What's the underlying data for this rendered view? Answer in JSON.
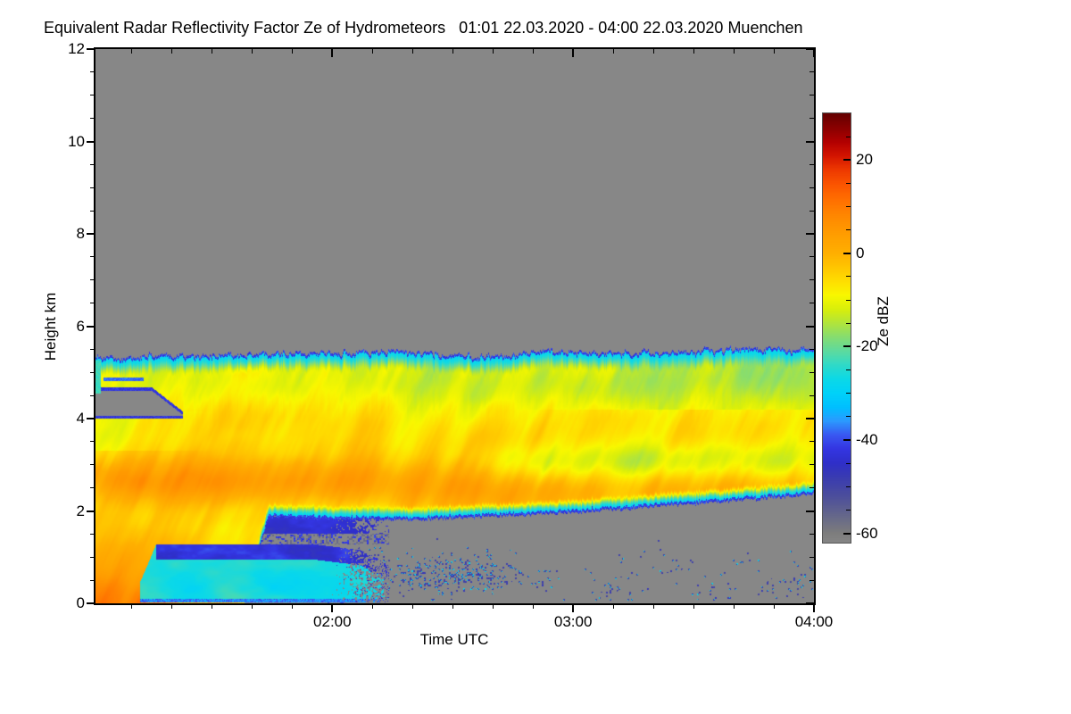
{
  "page": {
    "background": "#ffffff"
  },
  "chart": {
    "title": "Equivalent Radar Reflectivity Factor Ze of Hydrometeors   01:01 22.03.2020 - 04:00 22.03.2020 Muenchen",
    "xlabel": "Time UTC",
    "ylabel": "Height km",
    "colorbar_label": "Ze dBZ"
  },
  "chart_data": {
    "type": "heatmap",
    "title": "Equivalent Radar Reflectivity Factor Ze of Hydrometeors",
    "period": "01:01 22.03.2020 - 04:00 22.03.2020",
    "station": "Muenchen",
    "xlabel": "Time UTC",
    "ylabel": "Height km",
    "x_axis": {
      "start": "01:01",
      "end": "04:00",
      "major_ticks": [
        "02:00",
        "03:00",
        "04:00"
      ],
      "major_tick_minutes": [
        59,
        119,
        179
      ],
      "minor_tick_step_min": 10,
      "range_minutes": 179
    },
    "y_axis": {
      "major_ticks": [
        0,
        2,
        4,
        6,
        8,
        10,
        12
      ],
      "minor_step_km": 0.5,
      "range_km": [
        0,
        12
      ]
    },
    "colorbar": {
      "label": "Ze dBZ",
      "range_dbz": [
        -62,
        30
      ],
      "major_ticks": [
        20,
        0,
        -20,
        -40,
        -60
      ],
      "minor_step": 5,
      "stops": [
        [
          30,
          "#650000"
        ],
        [
          27,
          "#8a0000"
        ],
        [
          24,
          "#b20000"
        ],
        [
          21,
          "#d41500"
        ],
        [
          18,
          "#ee3900"
        ],
        [
          15,
          "#fb5400"
        ],
        [
          12,
          "#ff6c00"
        ],
        [
          9,
          "#ff8200"
        ],
        [
          6,
          "#ff9400"
        ],
        [
          3,
          "#ffa300"
        ],
        [
          0,
          "#ffb000"
        ],
        [
          -3,
          "#ffc600"
        ],
        [
          -6,
          "#ffdf00"
        ],
        [
          -9,
          "#f9f800"
        ],
        [
          -12,
          "#d9ef0c"
        ],
        [
          -15,
          "#b1e53c"
        ],
        [
          -18,
          "#86dd72"
        ],
        [
          -21,
          "#5ddaa0"
        ],
        [
          -24,
          "#30dac9"
        ],
        [
          -27,
          "#0cd9e8"
        ],
        [
          -30,
          "#00d2fa"
        ],
        [
          -33,
          "#00c0ff"
        ],
        [
          -36,
          "#2c9aff"
        ],
        [
          -39,
          "#3a57f2"
        ],
        [
          -42,
          "#3436e2"
        ],
        [
          -45,
          "#2f2fc9"
        ],
        [
          -48,
          "#3a3cb2"
        ],
        [
          -52,
          "#4c4e9d"
        ],
        [
          -56,
          "#64668c"
        ],
        [
          -60,
          "#7d7d7d"
        ],
        [
          -62,
          "#868686"
        ]
      ]
    },
    "background_no_signal_color": "#878787",
    "field_model": {
      "cloud_top_km": [
        [
          0,
          5.33
        ],
        [
          25,
          5.36
        ],
        [
          50,
          5.42
        ],
        [
          75,
          5.45
        ],
        [
          100,
          5.32
        ],
        [
          110,
          5.45
        ],
        [
          130,
          5.42
        ],
        [
          155,
          5.48
        ],
        [
          179,
          5.52
        ]
      ],
      "cloud_base_km": [
        [
          0,
          0
        ],
        [
          37,
          0
        ],
        [
          43,
          1.87
        ],
        [
          60,
          1.82
        ],
        [
          80,
          1.8
        ],
        [
          100,
          1.88
        ],
        [
          120,
          1.97
        ],
        [
          140,
          2.1
        ],
        [
          160,
          2.22
        ],
        [
          179,
          2.36
        ]
      ],
      "orange_band": {
        "center": [
          [
            0,
            2.7
          ],
          [
            40,
            2.65
          ],
          [
            70,
            2.55
          ],
          [
            100,
            2.4
          ],
          [
            130,
            2.45
          ],
          [
            179,
            2.58
          ]
        ],
        "amp": [
          [
            0,
            13
          ],
          [
            40,
            13
          ],
          [
            70,
            11
          ],
          [
            100,
            9
          ],
          [
            130,
            7
          ],
          [
            179,
            7.5
          ]
        ],
        "halfwidth": 0.55
      },
      "low_orange": {
        "amp": [
          [
            0,
            16
          ],
          [
            10,
            16
          ],
          [
            22,
            11
          ],
          [
            34,
            7
          ],
          [
            44,
            0
          ]
        ],
        "top_km": 2.5
      },
      "green_band": {
        "center_km": 3.05,
        "halfwidth": 0.42,
        "amp": [
          [
            0,
            0
          ],
          [
            85,
            0
          ],
          [
            110,
            6
          ],
          [
            130,
            8
          ],
          [
            155,
            8
          ],
          [
            179,
            7
          ]
        ]
      },
      "notch": {
        "t_range": [
          0,
          22
        ],
        "h_lo": 4.06,
        "h_hi": 4.6,
        "close_start": 14
      },
      "wedge": {
        "t_range": [
          11,
          73
        ],
        "top_km": [
          [
            11,
            0.45
          ],
          [
            15,
            1.27
          ],
          [
            55,
            1.27
          ],
          [
            66,
            1.15
          ],
          [
            73,
            0.85
          ]
        ],
        "cap_depth_km": 0.33,
        "z_cyan": -26,
        "z_cap": -43,
        "fade_start": 58
      },
      "underbase_layer": {
        "t_range": [
          41,
          73
        ],
        "h_range": [
          1.5,
          1.88
        ],
        "z": -44
      },
      "gap_gray": {
        "t_range": [
          41,
          73
        ],
        "h_range": [
          1.27,
          1.5
        ]
      },
      "speckle_clusters": [
        [
          60,
          0.35,
          8,
          0.35,
          0.3
        ],
        [
          68,
          0.8,
          5,
          0.3,
          0.25
        ],
        [
          78,
          0.55,
          6,
          0.3,
          0.25
        ],
        [
          89,
          0.62,
          8,
          0.35,
          0.3
        ],
        [
          100,
          0.6,
          6,
          0.25,
          0.2
        ],
        [
          112,
          0.45,
          4,
          0.2,
          0.12
        ],
        [
          128,
          0.3,
          5,
          0.2,
          0.09
        ],
        [
          143,
          0.78,
          5,
          0.25,
          0.09
        ],
        [
          152,
          0.2,
          6,
          0.2,
          0.07
        ],
        [
          161,
          0.85,
          4,
          0.2,
          0.08
        ],
        [
          170,
          0.35,
          5,
          0.25,
          0.08
        ],
        [
          176,
          0.6,
          3,
          0.3,
          0.1
        ]
      ],
      "speckle_base_density": 0.0035
    }
  }
}
